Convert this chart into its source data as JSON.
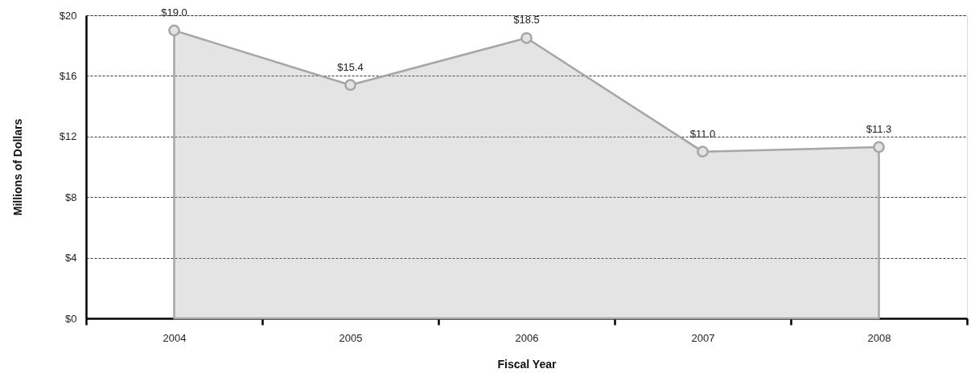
{
  "chart_data": {
    "type": "area",
    "xlabel": "Fiscal Year",
    "ylabel": "Millions of Dollars",
    "categories": [
      "2004",
      "2005",
      "2006",
      "2007",
      "2008"
    ],
    "series": [
      {
        "color": "#a6a6a6",
        "values": [
          19.0,
          15.4,
          18.5,
          11.0,
          11.3
        ],
        "value_labels": [
          "$19.0",
          "$15.4",
          "$18.5",
          "$11.0",
          "$11.3"
        ]
      }
    ],
    "ylim": [
      0,
      20
    ],
    "yticks": [
      {
        "value": 0,
        "label": "$0"
      },
      {
        "value": 4,
        "label": "$4"
      },
      {
        "value": 8,
        "label": "$8"
      },
      {
        "value": 12,
        "label": "$12"
      },
      {
        "value": 16,
        "label": "$16"
      },
      {
        "value": 20,
        "label": "$20"
      }
    ],
    "grid": "y",
    "marker": "circle"
  }
}
